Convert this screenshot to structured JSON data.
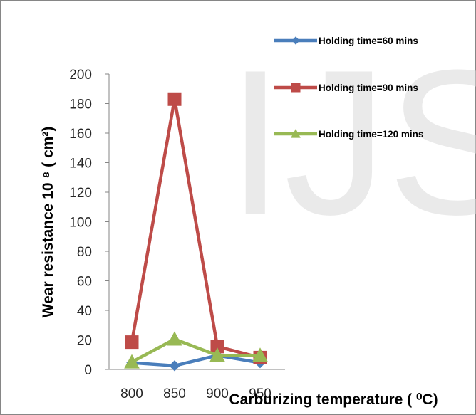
{
  "watermark": "IJS",
  "chart_data": {
    "type": "line",
    "title": "",
    "xlabel": "Carburizing temperature ( ⁰C)",
    "ylabel": "Wear resistance 10 ⁸ ( cm²)",
    "categories": [
      "800",
      "850",
      "900",
      "950"
    ],
    "y_ticks": [
      "0",
      "20",
      "40",
      "60",
      "80",
      "100",
      "120",
      "140",
      "160",
      "180",
      "200"
    ],
    "ylim": [
      0,
      200
    ],
    "grid": false,
    "legend_position": "right",
    "series": [
      {
        "name": "Holding time=60 mins",
        "values": [
          4.5,
          2.5,
          9.5,
          4.5
        ],
        "color": "#4a7ebb",
        "marker": "diamond"
      },
      {
        "name": "Holding time=90 mins",
        "values": [
          18.5,
          183,
          15.5,
          8
        ],
        "color": "#be4b48",
        "marker": "square"
      },
      {
        "name": "Holding time=120 mins",
        "values": [
          5,
          20.5,
          9.5,
          9.5
        ],
        "color": "#98b954",
        "marker": "triangle"
      }
    ]
  }
}
